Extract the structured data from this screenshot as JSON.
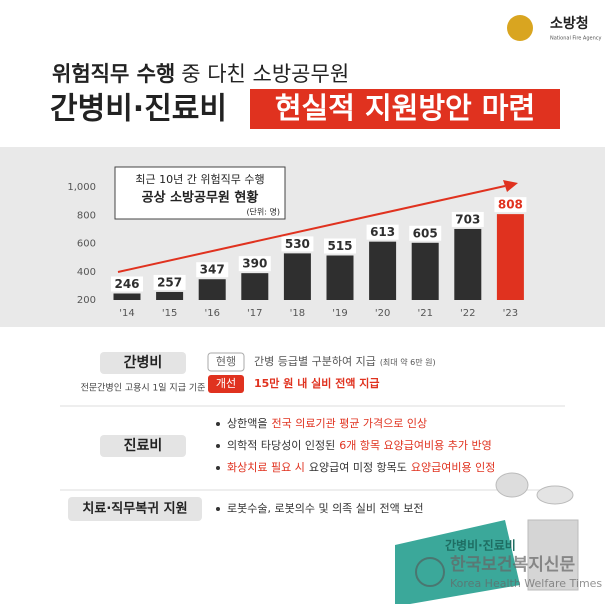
{
  "header": {
    "logo": "소방청",
    "logo_sub": "National Fire Agency",
    "line1_bold": "위험직무 수행",
    "line1_rest": "중 다친 소방공무원",
    "line2_dark": "간병비·진료비",
    "line2_red": "현실적 지원방안 마련"
  },
  "chart_data": {
    "type": "bar",
    "annotation": [
      "최근 10년 간 위험직무 수행",
      "공상 소방공무원 현황",
      "(단위: 명)"
    ],
    "categories": [
      "'14",
      "'15",
      "'16",
      "'17",
      "'18",
      "'19",
      "'20",
      "'21",
      "'22",
      "'23"
    ],
    "values": [
      246,
      257,
      347,
      390,
      530,
      515,
      613,
      605,
      703,
      808
    ],
    "colors": [
      "#2f2f2f",
      "#2f2f2f",
      "#2f2f2f",
      "#2f2f2f",
      "#2f2f2f",
      "#2f2f2f",
      "#2f2f2f",
      "#2f2f2f",
      "#2f2f2f",
      "#e0321f"
    ],
    "ylim": [
      200,
      1000
    ],
    "yticks": [
      200,
      400,
      600,
      800,
      {
        "value": 1000,
        "label": "1,000"
      }
    ]
  },
  "care": {
    "label": "간병비",
    "note": "전문간병인 고용시 1일 지급 기준",
    "current_tag": "현행",
    "current": "간병 등급별 구분하여 지급",
    "current_detail": "(최대 약 6만 원)",
    "improved_tag": "개선",
    "improved": "15만 원 내 실비 전액 지급"
  },
  "treatment": {
    "label": "진료비",
    "bullets": [
      [
        "상한액을",
        "전국 의료기관 평균 가격으로 인상"
      ],
      [
        "의학적 타당성이 인정된",
        "6개 항목 요양급여비용 추가 반영"
      ],
      [
        "화상치료 필요 시",
        "요양급여 미정 항목도",
        "요양급여비용 인정"
      ]
    ]
  },
  "recovery": {
    "label": "치료·직무복귀 지원",
    "bullets": [
      [
        "로봇수술, 로봇의수 및 의족 실비 전액 보전"
      ]
    ]
  },
  "decoration": {
    "card": "간병비·진료비",
    "watermark": "한국보건복지신문",
    "watermark_en": "Korea Health Welfare Times"
  }
}
